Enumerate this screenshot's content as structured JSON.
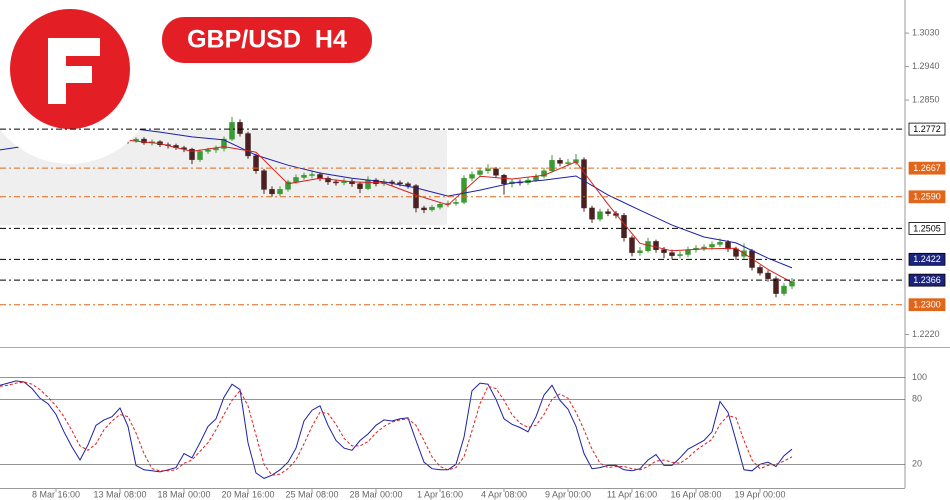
{
  "chart_data": [
    {
      "type": "candlestick",
      "title": "GBP/USD  H4",
      "x": [
        16,
        17,
        18,
        19,
        20,
        21,
        22,
        23,
        24,
        25,
        26,
        27,
        28,
        29,
        30,
        31,
        32,
        33,
        34,
        35,
        36,
        37,
        38,
        39,
        40,
        41,
        42,
        43,
        44,
        45,
        46,
        47,
        48,
        49,
        50,
        51,
        52,
        53,
        54,
        55,
        56,
        57,
        58,
        59,
        60,
        61,
        62,
        63,
        64,
        65,
        66,
        67,
        68,
        69,
        70,
        71,
        72,
        73,
        74,
        75,
        76,
        77,
        78,
        79,
        80,
        81,
        82,
        83,
        84,
        85,
        86,
        87,
        88,
        89,
        90,
        91,
        92,
        93,
        94,
        95,
        96,
        97,
        98,
        99
      ],
      "open": [
        1.2745,
        1.274,
        1.2745,
        1.2735,
        1.2738,
        1.273,
        1.2728,
        1.2722,
        1.2718,
        1.269,
        1.2712,
        1.2716,
        1.272,
        1.2745,
        1.279,
        1.276,
        1.27,
        1.266,
        1.261,
        1.2598,
        1.261,
        1.263,
        1.2642,
        1.2648,
        1.265,
        1.264,
        1.263,
        1.2628,
        1.2632,
        1.2625,
        1.2612,
        1.2635,
        1.2625,
        1.263,
        1.2628,
        1.2625,
        1.262,
        1.256,
        1.2555,
        1.2562,
        1.257,
        1.2572,
        1.2575,
        1.264,
        1.265,
        1.266,
        1.2665,
        1.2648,
        1.2625,
        1.263,
        1.2628,
        1.2635,
        1.2645,
        1.266,
        1.2688,
        1.268,
        1.2682,
        1.269,
        1.256,
        1.253,
        1.255,
        1.2545,
        1.254,
        1.248,
        1.244,
        1.2445,
        1.247,
        1.2448,
        1.244,
        1.2432,
        1.2435,
        1.2448,
        1.2452,
        1.2455,
        1.2462,
        1.2468,
        1.245,
        1.243,
        1.2445,
        1.24,
        1.2385,
        1.237,
        1.233,
        1.235
      ],
      "high": [
        1.2752,
        1.275,
        1.275,
        1.2744,
        1.2742,
        1.2736,
        1.2733,
        1.2727,
        1.2722,
        1.2718,
        1.2722,
        1.2728,
        1.2752,
        1.2805,
        1.2798,
        1.2765,
        1.2706,
        1.2665,
        1.2618,
        1.2618,
        1.2636,
        1.265,
        1.2655,
        1.266,
        1.2656,
        1.2645,
        1.2637,
        1.264,
        1.2638,
        1.263,
        1.2645,
        1.264,
        1.2638,
        1.2636,
        1.2634,
        1.263,
        1.2624,
        1.2566,
        1.2568,
        1.2576,
        1.258,
        1.2584,
        1.2648,
        1.2658,
        1.2668,
        1.2678,
        1.267,
        1.2652,
        1.2638,
        1.2637,
        1.2642,
        1.2652,
        1.2668,
        1.2702,
        1.2695,
        1.2692,
        1.2705,
        1.2696,
        1.2566,
        1.2558,
        1.2558,
        1.2552,
        1.2546,
        1.2486,
        1.2455,
        1.248,
        1.2475,
        1.2455,
        1.2448,
        1.2444,
        1.2456,
        1.246,
        1.2462,
        1.247,
        1.2478,
        1.2474,
        1.2456,
        1.2465,
        1.245,
        1.2406,
        1.2392,
        1.2376,
        1.2358,
        1.2372
      ],
      "low": [
        1.2733,
        1.2735,
        1.273,
        1.2728,
        1.2724,
        1.272,
        1.2716,
        1.271,
        1.2678,
        1.2684,
        1.2705,
        1.2708,
        1.2712,
        1.274,
        1.2752,
        1.2692,
        1.2652,
        1.2598,
        1.259,
        1.2592,
        1.2604,
        1.2625,
        1.2636,
        1.264,
        1.2632,
        1.2622,
        1.262,
        1.2621,
        1.2617,
        1.26,
        1.2608,
        1.2618,
        1.2619,
        1.262,
        1.2618,
        1.2612,
        1.2548,
        1.2546,
        1.255,
        1.2556,
        1.2562,
        1.2566,
        1.257,
        1.2632,
        1.2644,
        1.2652,
        1.264,
        1.2596,
        1.2615,
        1.262,
        1.2622,
        1.263,
        1.264,
        1.2655,
        1.2672,
        1.2672,
        1.2676,
        1.255,
        1.252,
        1.2524,
        1.2538,
        1.2532,
        1.247,
        1.243,
        1.2432,
        1.244,
        1.244,
        1.2425,
        1.2422,
        1.2425,
        1.2428,
        1.244,
        1.2444,
        1.2448,
        1.2455,
        1.2442,
        1.242,
        1.2424,
        1.2392,
        1.2378,
        1.2362,
        1.232,
        1.2324,
        1.2342
      ],
      "close": [
        1.274,
        1.2745,
        1.2735,
        1.2738,
        1.273,
        1.2728,
        1.2722,
        1.2718,
        1.269,
        1.2712,
        1.2716,
        1.272,
        1.2745,
        1.279,
        1.276,
        1.27,
        1.266,
        1.261,
        1.2598,
        1.261,
        1.263,
        1.2642,
        1.2648,
        1.265,
        1.264,
        1.263,
        1.2628,
        1.2632,
        1.2625,
        1.2612,
        1.2635,
        1.2625,
        1.263,
        1.2628,
        1.2625,
        1.262,
        1.256,
        1.2555,
        1.2562,
        1.257,
        1.2572,
        1.2575,
        1.264,
        1.265,
        1.266,
        1.2665,
        1.2648,
        1.2625,
        1.263,
        1.2628,
        1.2635,
        1.2645,
        1.266,
        1.2688,
        1.268,
        1.2682,
        1.269,
        1.256,
        1.253,
        1.255,
        1.2545,
        1.254,
        1.248,
        1.244,
        1.2445,
        1.247,
        1.2448,
        1.244,
        1.2432,
        1.2435,
        1.2448,
        1.2452,
        1.2455,
        1.2462,
        1.2468,
        1.245,
        1.243,
        1.2445,
        1.24,
        1.2385,
        1.237,
        1.233,
        1.235,
        1.2362
      ],
      "up_color": "#3c9a35",
      "down_color": "#4a2020",
      "lines": [
        {
          "color": "#1c1fa8",
          "x": [
            0,
            4,
            8,
            12,
            16,
            20,
            24,
            28,
            32,
            36,
            40,
            44,
            48,
            52,
            56,
            60,
            64,
            68,
            72,
            76,
            80,
            84,
            88,
            92,
            96,
            99
          ],
          "values": [
            1.2716,
            1.2729,
            1.2748,
            1.2764,
            1.2775,
            1.2764,
            1.2751,
            1.2743,
            1.2702,
            1.2675,
            1.2654,
            1.264,
            1.263,
            1.2614,
            1.2592,
            1.2608,
            1.2627,
            1.2635,
            1.2646,
            1.2595,
            1.2554,
            1.2514,
            1.2482,
            1.2466,
            1.2425,
            1.2399
          ]
        },
        {
          "color": "#d62020",
          "x": [
            16,
            20,
            24,
            28,
            32,
            36,
            40,
            44,
            48,
            52,
            56,
            60,
            64,
            68,
            72,
            76,
            80,
            84,
            88,
            92,
            96,
            99
          ],
          "values": [
            1.2742,
            1.2733,
            1.2712,
            1.2725,
            1.271,
            1.2625,
            1.264,
            1.263,
            1.2627,
            1.2595,
            1.2568,
            1.2645,
            1.2638,
            1.2648,
            1.2684,
            1.257,
            1.2465,
            1.2445,
            1.245,
            1.2452,
            1.2395,
            1.236
          ]
        }
      ],
      "levels": [
        {
          "value": 1.2772,
          "label": "1.2772",
          "color": "#000000",
          "fill": "#ffffff",
          "text_color": "#000000"
        },
        {
          "value": 1.2667,
          "label": "1.2667",
          "color": "#e0661c",
          "fill": "#e0661c",
          "text_color": "#ffffff"
        },
        {
          "value": 1.259,
          "label": "1.2590",
          "color": "#e0661c",
          "fill": "#e0661c",
          "text_color": "#ffffff"
        },
        {
          "value": 1.2505,
          "label": "1.2505",
          "color": "#000000",
          "fill": "#ffffff",
          "text_color": "#000000"
        },
        {
          "value": 1.2422,
          "label": "1.2422",
          "color": "#000000",
          "fill": "#1a237e",
          "text_color": "#ffffff"
        },
        {
          "value": 1.2366,
          "label": "1.2366",
          "color": "#000000",
          "fill": "#1a237e",
          "text_color": "#ffffff"
        },
        {
          "value": 1.23,
          "label": "1.2300",
          "color": "#e0661c",
          "fill": "#e0661c",
          "text_color": "#ffffff"
        }
      ],
      "xlim": [
        0,
        113
      ],
      "ylim": [
        1.2189,
        1.3119
      ],
      "yticks": [
        {
          "value": 1.303,
          "label": "1.3030"
        },
        {
          "value": 1.294,
          "label": "1.2940"
        },
        {
          "value": 1.285,
          "label": "1.2850"
        },
        {
          "value": 1.222,
          "label": "1.2220"
        }
      ]
    },
    {
      "type": "line",
      "x": [
        0,
        1,
        2,
        3,
        4,
        5,
        6,
        7,
        8,
        9,
        10,
        11,
        12,
        13,
        14,
        15,
        16,
        17,
        18,
        19,
        20,
        21,
        22,
        23,
        24,
        25,
        26,
        27,
        28,
        29,
        30,
        31,
        32,
        33,
        34,
        35,
        36,
        37,
        38,
        39,
        40,
        41,
        42,
        43,
        44,
        45,
        46,
        47,
        48,
        49,
        50,
        51,
        52,
        53,
        54,
        55,
        56,
        57,
        58,
        59,
        60,
        61,
        62,
        63,
        64,
        65,
        66,
        67,
        68,
        69,
        70,
        71,
        72,
        73,
        74,
        75,
        76,
        77,
        78,
        79,
        80,
        81,
        82,
        83,
        84,
        85,
        86,
        87,
        88,
        89,
        90,
        91,
        92,
        93,
        94,
        95,
        96,
        97,
        98,
        99
      ],
      "series": [
        {
          "color": "#1c1fa8",
          "dash": false,
          "values": [
            93,
            95,
            97,
            96,
            90,
            81,
            76,
            66,
            50,
            36,
            24,
            38,
            56,
            61,
            64,
            72,
            55,
            19,
            15,
            14,
            13,
            15,
            17,
            30,
            26,
            40,
            55,
            62,
            82,
            94,
            89,
            40,
            12,
            7,
            10,
            15,
            22,
            35,
            60,
            70,
            74,
            56,
            42,
            35,
            33,
            42,
            48,
            56,
            61,
            60,
            62,
            63,
            42,
            22,
            16,
            15,
            15,
            20,
            45,
            88,
            95,
            94,
            80,
            62,
            57,
            54,
            50,
            64,
            84,
            93,
            79,
            71,
            55,
            30,
            16,
            17,
            19,
            19,
            15,
            14,
            16,
            24,
            29,
            19,
            19,
            26,
            34,
            38,
            42,
            50,
            78,
            68,
            42,
            15,
            14,
            20,
            22,
            18,
            28,
            34
          ]
        },
        {
          "color": "#e02020",
          "dash": true,
          "values": [
            92,
            93,
            95,
            96,
            94,
            89,
            82,
            74,
            64,
            51,
            37,
            33,
            39,
            52,
            60,
            66,
            64,
            49,
            30,
            16,
            14,
            14,
            15,
            21,
            24,
            32,
            40,
            52,
            66,
            79,
            88,
            74,
            47,
            20,
            10,
            11,
            16,
            24,
            39,
            55,
            68,
            67,
            57,
            44,
            37,
            37,
            41,
            49,
            55,
            59,
            61,
            62,
            56,
            42,
            27,
            18,
            15,
            17,
            27,
            51,
            76,
            92,
            90,
            79,
            66,
            58,
            54,
            56,
            66,
            80,
            85,
            81,
            68,
            52,
            34,
            21,
            17,
            18,
            18,
            16,
            15,
            18,
            23,
            24,
            22,
            21,
            26,
            33,
            38,
            43,
            57,
            65,
            63,
            42,
            24,
            16,
            19,
            20,
            23,
            27
          ]
        }
      ],
      "xlim": [
        0,
        113
      ],
      "ylim": [
        0,
        120
      ],
      "yticks": [
        20,
        80,
        100
      ],
      "xticks": [
        {
          "value": 7,
          "label": "8 Mar 16:00"
        },
        {
          "value": 15,
          "label": "13 Mar 08:00"
        },
        {
          "value": 23,
          "label": "18 Mar 00:00"
        },
        {
          "value": 31,
          "label": "20 Mar 16:00"
        },
        {
          "value": 39,
          "label": "25 Mar 08:00"
        },
        {
          "value": 47,
          "label": "28 Mar 00:00"
        },
        {
          "value": 55,
          "label": "1 Apr 16:00"
        },
        {
          "value": 63,
          "label": "4 Apr 08:00"
        },
        {
          "value": 71,
          "label": "9 Apr 00:00"
        },
        {
          "value": 79,
          "label": "11 Apr 16:00"
        },
        {
          "value": 87,
          "label": "16 Apr 08:00"
        },
        {
          "value": 95,
          "label": "19 Apr 00:00"
        }
      ]
    }
  ]
}
